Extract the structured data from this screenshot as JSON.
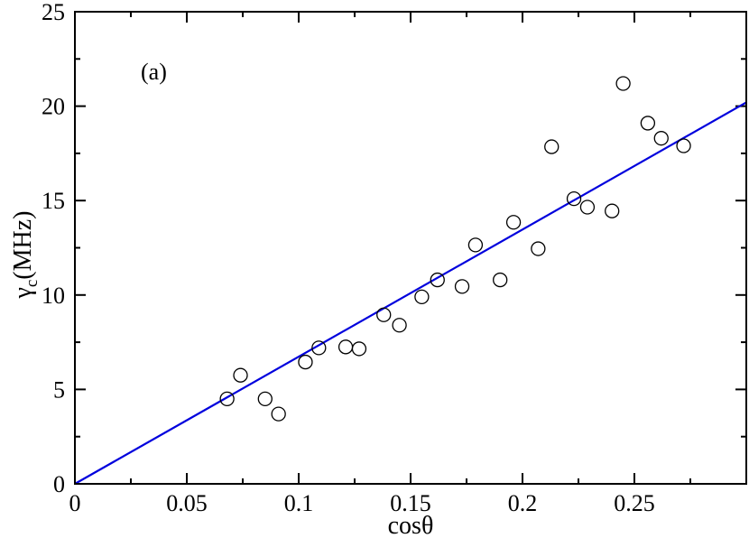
{
  "chart_data": {
    "type": "scatter",
    "panel_label": "(a)",
    "xlabel": "cosθ",
    "ylabel": {
      "base": "γ",
      "subscript": "c",
      "unit": "(MHz)"
    },
    "xlim": [
      0,
      0.3
    ],
    "ylim": [
      0,
      25
    ],
    "x_ticks": [
      {
        "value": 0,
        "label": "0"
      },
      {
        "value": 0.05,
        "label": "0.05"
      },
      {
        "value": 0.1,
        "label": "0.1"
      },
      {
        "value": 0.15,
        "label": "0.15"
      },
      {
        "value": 0.2,
        "label": "0.2"
      },
      {
        "value": 0.25,
        "label": "0.25"
      }
    ],
    "x_minor_step": 0.025,
    "y_ticks": [
      {
        "value": 0,
        "label": "0"
      },
      {
        "value": 5,
        "label": "5"
      },
      {
        "value": 10,
        "label": "10"
      },
      {
        "value": 15,
        "label": "15"
      },
      {
        "value": 20,
        "label": "20"
      },
      {
        "value": 25,
        "label": "25"
      }
    ],
    "y_minor_step": 2.5,
    "grid": false,
    "series": [
      {
        "kind": "scatter",
        "marker": "open-circle",
        "color": "#000000",
        "points": [
          {
            "x": 0.068,
            "y": 4.5
          },
          {
            "x": 0.074,
            "y": 5.75
          },
          {
            "x": 0.085,
            "y": 4.5
          },
          {
            "x": 0.091,
            "y": 3.7
          },
          {
            "x": 0.103,
            "y": 6.45
          },
          {
            "x": 0.109,
            "y": 7.2
          },
          {
            "x": 0.121,
            "y": 7.25
          },
          {
            "x": 0.127,
            "y": 7.15
          },
          {
            "x": 0.138,
            "y": 8.95
          },
          {
            "x": 0.145,
            "y": 8.4
          },
          {
            "x": 0.155,
            "y": 9.9
          },
          {
            "x": 0.162,
            "y": 10.8
          },
          {
            "x": 0.173,
            "y": 10.45
          },
          {
            "x": 0.179,
            "y": 12.65
          },
          {
            "x": 0.19,
            "y": 10.8
          },
          {
            "x": 0.196,
            "y": 13.85
          },
          {
            "x": 0.207,
            "y": 12.45
          },
          {
            "x": 0.213,
            "y": 17.85
          },
          {
            "x": 0.223,
            "y": 15.1
          },
          {
            "x": 0.229,
            "y": 14.65
          },
          {
            "x": 0.24,
            "y": 14.45
          },
          {
            "x": 0.245,
            "y": 21.2
          },
          {
            "x": 0.256,
            "y": 19.1
          },
          {
            "x": 0.262,
            "y": 18.3
          },
          {
            "x": 0.272,
            "y": 17.9
          }
        ]
      },
      {
        "kind": "line",
        "color": "#0000dd",
        "points": [
          {
            "x": 0,
            "y": 0
          },
          {
            "x": 0.3,
            "y": 20.2
          }
        ]
      }
    ]
  }
}
